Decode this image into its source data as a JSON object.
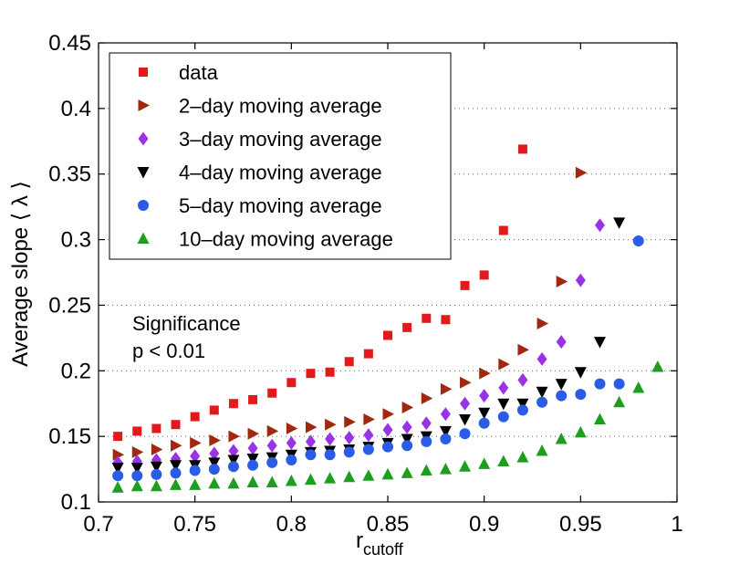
{
  "chart_data": {
    "type": "scatter",
    "title": "",
    "xlabel": "r",
    "xlabel_sub": "cutoff",
    "ylabel": "Average slope ⟨ λ ⟩",
    "xlim": [
      0.7,
      1.0
    ],
    "ylim": [
      0.1,
      0.45
    ],
    "xticks": [
      "0.7",
      "0.75",
      "0.8",
      "0.85",
      "0.9",
      "0.95",
      "1"
    ],
    "yticks": [
      "0.1",
      "0.15",
      "0.2",
      "0.25",
      "0.3",
      "0.35",
      "0.4",
      "0.45"
    ],
    "grid": "horizontal dotted",
    "legend_position": "top-left",
    "annotation": [
      "Significance",
      "p < 0.01"
    ],
    "series": [
      {
        "name": "data",
        "marker": "square",
        "color": "#e31a1c",
        "x": [
          0.71,
          0.72,
          0.73,
          0.74,
          0.75,
          0.76,
          0.77,
          0.78,
          0.79,
          0.8,
          0.81,
          0.82,
          0.83,
          0.84,
          0.85,
          0.86,
          0.87,
          0.88,
          0.89,
          0.9,
          0.91,
          0.92
        ],
        "y": [
          0.15,
          0.154,
          0.156,
          0.159,
          0.165,
          0.17,
          0.175,
          0.178,
          0.183,
          0.191,
          0.198,
          0.199,
          0.207,
          0.213,
          0.227,
          0.233,
          0.24,
          0.239,
          0.265,
          0.273,
          0.307,
          0.369
        ]
      },
      {
        "name": "2–day moving average",
        "marker": "triangle-right",
        "color": "#a0280f",
        "x": [
          0.71,
          0.72,
          0.73,
          0.74,
          0.75,
          0.76,
          0.77,
          0.78,
          0.79,
          0.8,
          0.81,
          0.82,
          0.83,
          0.84,
          0.85,
          0.86,
          0.87,
          0.88,
          0.89,
          0.9,
          0.91,
          0.92,
          0.93,
          0.94,
          0.95
        ],
        "y": [
          0.136,
          0.138,
          0.14,
          0.143,
          0.145,
          0.147,
          0.15,
          0.152,
          0.154,
          0.156,
          0.157,
          0.159,
          0.161,
          0.163,
          0.167,
          0.172,
          0.179,
          0.186,
          0.191,
          0.198,
          0.205,
          0.216,
          0.236,
          0.268,
          0.351
        ]
      },
      {
        "name": "3–day moving average",
        "marker": "diamond",
        "color": "#9a32e6",
        "x": [
          0.71,
          0.72,
          0.73,
          0.74,
          0.75,
          0.76,
          0.77,
          0.78,
          0.79,
          0.8,
          0.81,
          0.82,
          0.83,
          0.84,
          0.85,
          0.86,
          0.87,
          0.88,
          0.89,
          0.9,
          0.91,
          0.92,
          0.93,
          0.94,
          0.95,
          0.96
        ],
        "y": [
          0.13,
          0.131,
          0.132,
          0.133,
          0.135,
          0.137,
          0.139,
          0.141,
          0.143,
          0.145,
          0.146,
          0.148,
          0.149,
          0.151,
          0.155,
          0.157,
          0.16,
          0.167,
          0.175,
          0.181,
          0.187,
          0.193,
          0.209,
          0.222,
          0.269,
          0.311
        ]
      },
      {
        "name": "4–day moving average",
        "marker": "triangle-down",
        "color": "#000000",
        "x": [
          0.71,
          0.72,
          0.73,
          0.74,
          0.75,
          0.76,
          0.77,
          0.78,
          0.79,
          0.8,
          0.81,
          0.82,
          0.83,
          0.84,
          0.85,
          0.86,
          0.87,
          0.88,
          0.89,
          0.9,
          0.91,
          0.92,
          0.93,
          0.94,
          0.95,
          0.96,
          0.97
        ],
        "y": [
          0.126,
          0.126,
          0.127,
          0.128,
          0.128,
          0.13,
          0.132,
          0.133,
          0.134,
          0.136,
          0.138,
          0.139,
          0.14,
          0.142,
          0.145,
          0.148,
          0.15,
          0.154,
          0.163,
          0.168,
          0.175,
          0.175,
          0.184,
          0.19,
          0.199,
          0.222,
          0.313
        ]
      },
      {
        "name": "5–day moving average",
        "marker": "circle",
        "color": "#2b5ce6",
        "x": [
          0.71,
          0.72,
          0.73,
          0.74,
          0.75,
          0.76,
          0.77,
          0.78,
          0.79,
          0.8,
          0.81,
          0.82,
          0.83,
          0.84,
          0.85,
          0.86,
          0.87,
          0.88,
          0.89,
          0.9,
          0.91,
          0.92,
          0.93,
          0.94,
          0.95,
          0.96,
          0.97,
          0.98
        ],
        "y": [
          0.12,
          0.12,
          0.121,
          0.122,
          0.124,
          0.125,
          0.127,
          0.128,
          0.13,
          0.132,
          0.136,
          0.136,
          0.138,
          0.14,
          0.142,
          0.143,
          0.146,
          0.148,
          0.152,
          0.16,
          0.165,
          0.17,
          0.176,
          0.181,
          0.182,
          0.19,
          0.19,
          0.299
        ]
      },
      {
        "name": "10–day moving average",
        "marker": "triangle-up",
        "color": "#1e9e1e",
        "x": [
          0.71,
          0.72,
          0.73,
          0.74,
          0.75,
          0.76,
          0.77,
          0.78,
          0.79,
          0.8,
          0.81,
          0.82,
          0.83,
          0.84,
          0.85,
          0.86,
          0.87,
          0.88,
          0.89,
          0.9,
          0.91,
          0.92,
          0.93,
          0.94,
          0.95,
          0.96,
          0.97,
          0.98,
          0.99
        ],
        "y": [
          0.111,
          0.112,
          0.112,
          0.113,
          0.113,
          0.114,
          0.114,
          0.115,
          0.115,
          0.116,
          0.117,
          0.118,
          0.119,
          0.12,
          0.121,
          0.122,
          0.124,
          0.125,
          0.127,
          0.129,
          0.131,
          0.134,
          0.139,
          0.148,
          0.153,
          0.163,
          0.176,
          0.187,
          0.203
        ]
      }
    ]
  }
}
